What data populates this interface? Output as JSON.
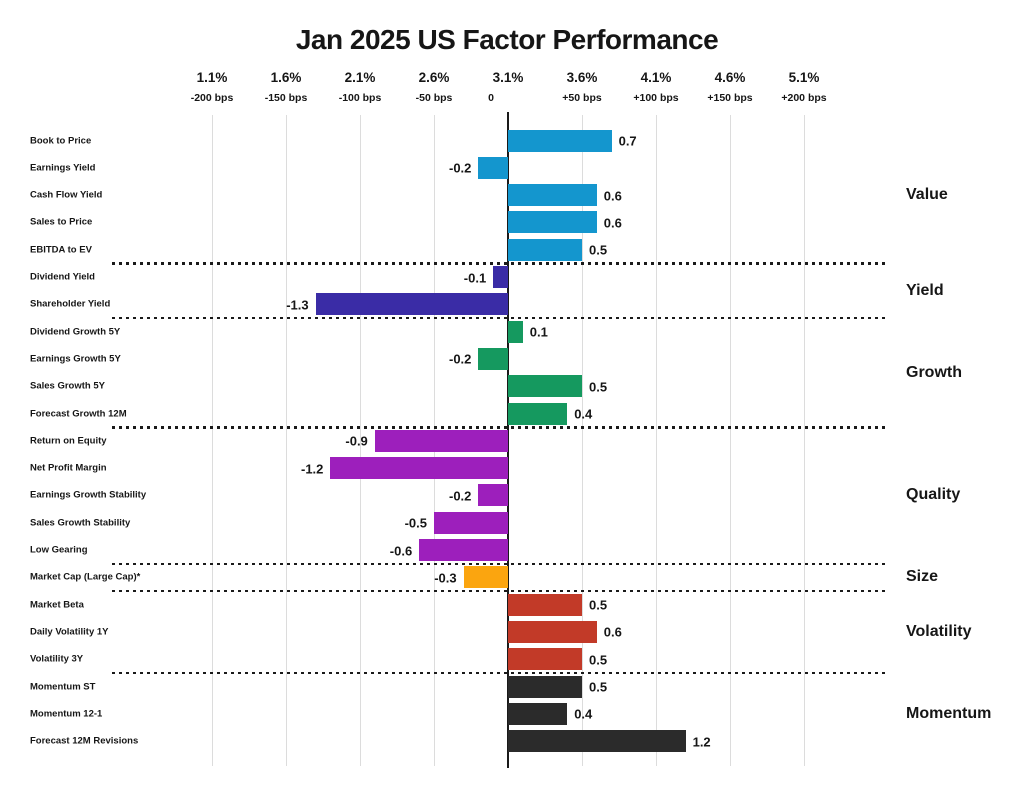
{
  "title": "Jan 2025 US Factor Performance",
  "axis": {
    "percent_ticks": [
      "1.1%",
      "1.6%",
      "2.1%",
      "2.6%",
      "3.1%",
      "3.6%",
      "4.1%",
      "4.6%",
      "5.1%"
    ],
    "bps_ticks": [
      "-200 bps",
      "-150 bps",
      "-100 bps",
      "-50 bps",
      "0",
      "+50 bps",
      "+100 bps",
      "+150 bps",
      "+200 bps"
    ]
  },
  "chart_data": {
    "type": "bar",
    "orientation": "horizontal",
    "title": "Jan 2025 US Factor Performance",
    "xlabel": "",
    "ylabel": "",
    "xlim": [
      -2.0,
      2.0
    ],
    "baseline": 0,
    "grid": true,
    "legend_position": "none",
    "unit_note": "top axis shows absolute % with bps deviation from 0 baseline; bar values in % points",
    "percent_ticks": [
      "1.1%",
      "1.6%",
      "2.1%",
      "2.6%",
      "3.1%",
      "3.6%",
      "4.1%",
      "4.6%",
      "5.1%"
    ],
    "bps_ticks": [
      "-200 bps",
      "-150 bps",
      "-100 bps",
      "-50 bps",
      "0",
      "+50 bps",
      "+100 bps",
      "+150 bps",
      "+200 bps"
    ],
    "groups": [
      {
        "name": "Value",
        "color": "#1496CE",
        "factors": [
          {
            "label": "Book to Price",
            "value": 0.7
          },
          {
            "label": "Earnings Yield",
            "value": -0.2
          },
          {
            "label": "Cash Flow Yield",
            "value": 0.6
          },
          {
            "label": "Sales to Price",
            "value": 0.6
          },
          {
            "label": "EBITDA to EV",
            "value": 0.5
          }
        ]
      },
      {
        "name": "Yield",
        "color": "#3A2CA6",
        "factors": [
          {
            "label": "Dividend Yield",
            "value": -0.1
          },
          {
            "label": "Shareholder Yield",
            "value": -1.3
          }
        ]
      },
      {
        "name": "Growth",
        "color": "#15995F",
        "factors": [
          {
            "label": "Dividend Growth 5Y",
            "value": 0.1
          },
          {
            "label": "Earnings Growth 5Y",
            "value": -0.2
          },
          {
            "label": "Sales Growth 5Y",
            "value": 0.5
          },
          {
            "label": "Forecast Growth 12M",
            "value": 0.4
          }
        ]
      },
      {
        "name": "Quality",
        "color": "#9D1FBC",
        "factors": [
          {
            "label": "Return on Equity",
            "value": -0.9
          },
          {
            "label": "Net Profit Margin",
            "value": -1.2
          },
          {
            "label": "Earnings Growth Stability",
            "value": -0.2
          },
          {
            "label": "Sales Growth Stability",
            "value": -0.5
          },
          {
            "label": "Low Gearing",
            "value": -0.6
          }
        ]
      },
      {
        "name": "Size",
        "color": "#FBA50F",
        "factors": [
          {
            "label": "Market Cap (Large Cap)*",
            "value": -0.3
          }
        ]
      },
      {
        "name": "Volatility",
        "color": "#C23A28",
        "factors": [
          {
            "label": "Market Beta",
            "value": 0.5
          },
          {
            "label": "Daily Volatility 1Y",
            "value": 0.6
          },
          {
            "label": "Volatility 3Y",
            "value": 0.5
          }
        ]
      },
      {
        "name": "Momentum",
        "color": "#2B2B2B",
        "factors": [
          {
            "label": "Momentum ST",
            "value": 0.5
          },
          {
            "label": "Momentum 12-1",
            "value": 0.4
          },
          {
            "label": "Forecast 12M Revisions",
            "value": 1.2
          }
        ]
      }
    ]
  }
}
